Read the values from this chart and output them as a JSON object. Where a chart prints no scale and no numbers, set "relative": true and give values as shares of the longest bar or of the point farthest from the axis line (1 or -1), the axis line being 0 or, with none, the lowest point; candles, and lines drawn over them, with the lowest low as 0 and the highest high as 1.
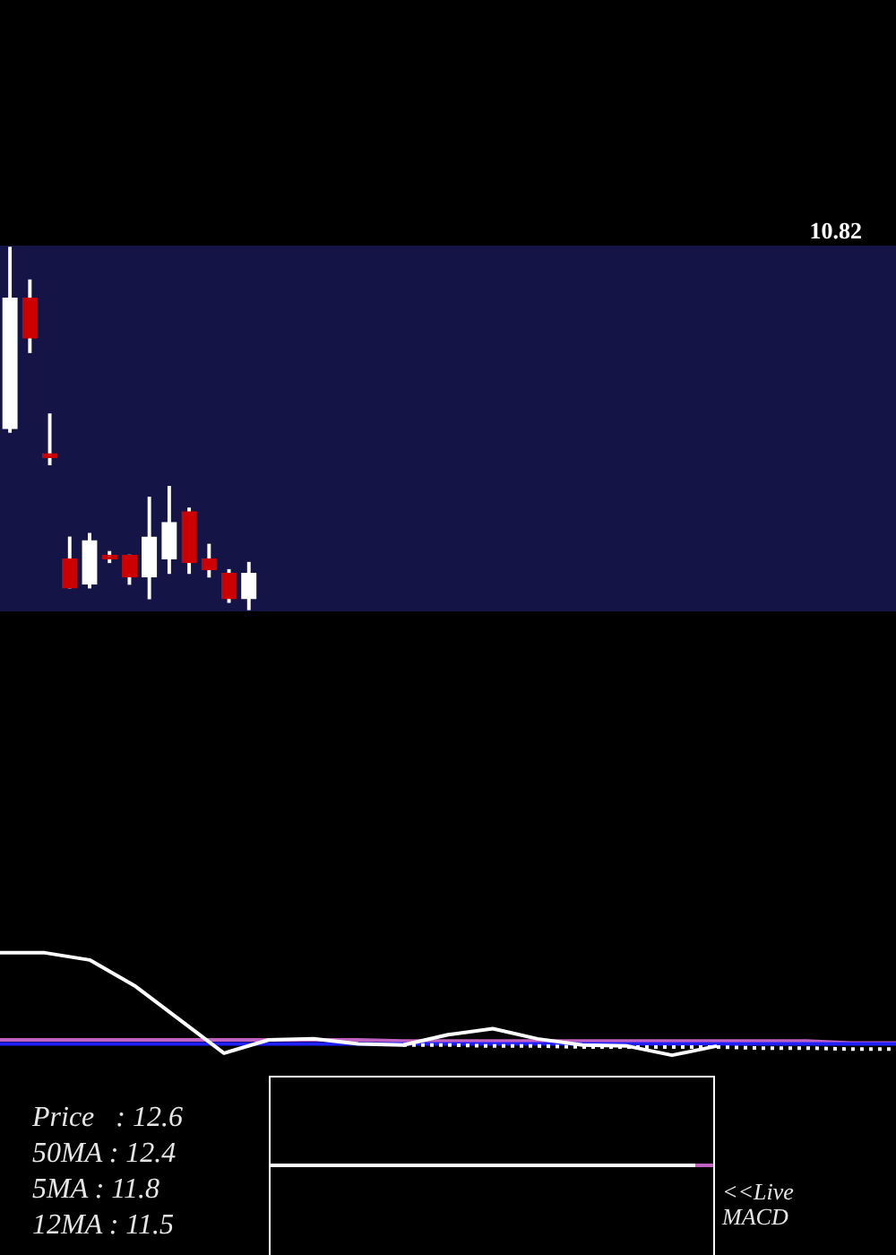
{
  "chart_data": [
    {
      "type": "candlestick",
      "relative": true,
      "tick_labels": false,
      "categories": [
        null,
        null,
        null,
        null,
        null,
        null,
        null,
        null,
        null,
        null,
        null,
        null,
        null,
        null,
        null,
        null,
        null,
        null,
        null,
        null,
        null,
        null,
        null,
        null,
        null,
        null,
        null,
        null,
        null,
        null,
        null,
        null,
        null,
        null,
        null,
        null,
        null,
        null,
        null,
        null,
        null,
        null,
        null,
        null,
        null
      ],
      "ohlc": [
        [
          0.5,
          1,
          0.49,
          0.86
        ],
        [
          0.86,
          0.91,
          0.71,
          0.75
        ],
        [
          0.43,
          0.54,
          0.4,
          0.42
        ],
        [
          0.14,
          0.2,
          0.06,
          0.06
        ],
        [
          0.07,
          0.21,
          0.06,
          0.19
        ],
        [
          0.15,
          0.16,
          0.13,
          0.14
        ],
        [
          0.15,
          0.15,
          0.07,
          0.09
        ],
        [
          0.09,
          0.31,
          0.03,
          0.2
        ],
        [
          0.14,
          0.34,
          0.1,
          0.24
        ],
        [
          0.27,
          0.28,
          0.1,
          0.13
        ],
        [
          0.14,
          0.18,
          0.09,
          0.11
        ],
        [
          0.1,
          0.11,
          0.02,
          0.03
        ],
        [
          0.03,
          0.13,
          0,
          0.1
        ],
        null,
        null,
        null,
        null,
        null,
        null,
        null,
        null,
        null,
        null,
        null,
        null,
        null,
        null,
        null,
        null,
        null,
        null,
        null,
        null,
        null,
        null,
        null,
        null,
        null,
        null,
        null,
        null,
        null,
        null,
        null,
        null
      ],
      "colors": [
        "#ffffff",
        "#cc0000",
        "#cc0000",
        "#cc0000",
        "#ffffff",
        "#cc0000",
        "#cc0000",
        "#ffffff",
        "#ffffff",
        "#cc0000",
        "#cc0000",
        "#cc0000",
        "#ffffff",
        null,
        null,
        null,
        null,
        null,
        null,
        null,
        null,
        null,
        null,
        null,
        null,
        null,
        null,
        null,
        null,
        null,
        null,
        null,
        null,
        null,
        null,
        null,
        null,
        null,
        null,
        null,
        null,
        null,
        null,
        null,
        null
      ],
      "annotations": [
        "10.82"
      ]
    },
    {
      "type": "line",
      "relative": true,
      "tick_labels": false,
      "categories": [
        null,
        null,
        null,
        null,
        null,
        null,
        null,
        null,
        null,
        null,
        null,
        null,
        null,
        null,
        null,
        null,
        null,
        null,
        null,
        null,
        null
      ],
      "series": [
        {
          "color": "#c060c0",
          "values": [
            0.15,
            0.15,
            0.15,
            0.15,
            0.15,
            0.15,
            0.15,
            0.15,
            0.15,
            0.14,
            0.14,
            0.14,
            0.14,
            0.14,
            0.14,
            0.14,
            0.14,
            0.14,
            0.14,
            0.12,
            0.12
          ]
        },
        {
          "color": "#2020ff",
          "values": [
            0.11,
            0.11,
            0.11,
            0.11,
            0.11,
            0.11,
            0.11,
            0.11,
            0.11,
            0.11,
            0.11,
            0.11,
            0.11,
            0.11,
            0.11,
            0.11,
            0.11,
            0.11,
            0.11,
            0.11,
            0.11
          ]
        },
        {
          "color": "#ffffff",
          "line_style": "dotted",
          "values": [
            null,
            null,
            null,
            null,
            null,
            null,
            null,
            null,
            null,
            0.1,
            0.1,
            0.09,
            0.09,
            0.08,
            0.08,
            0.08,
            0.08,
            0.07,
            0.07,
            0.06,
            0.06
          ]
        },
        {
          "color": "#ffffff",
          "values": [
            1,
            1,
            0.93,
            0.68,
            0.35,
            0.02,
            0.15,
            0.16,
            0.11,
            0.1,
            0.2,
            0.26,
            0.16,
            0.1,
            0.09,
            0,
            0.09,
            null,
            null,
            null,
            null
          ]
        }
      ]
    },
    {
      "type": "other",
      "annotations": [
        "Price   : 12.6",
        "50MA : 12.4",
        "5MA : 11.8",
        "12MA : 11.5"
      ]
    },
    {
      "type": "other",
      "annotations": [
        "<<Live MACD"
      ]
    }
  ]
}
